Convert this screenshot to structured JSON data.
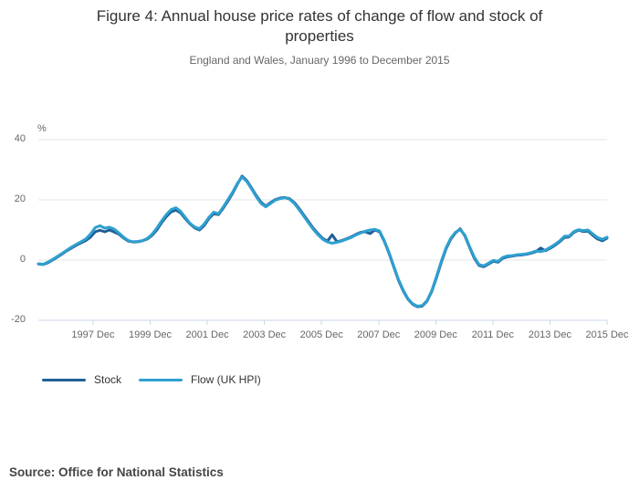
{
  "header": {
    "title": "Figure 4: Annual house price rates of change of flow and stock of properties",
    "subtitle": "England and Wales, January 1996 to December 2015"
  },
  "source": {
    "text": "Source: Office for National Statistics"
  },
  "colors": {
    "gridline": "#e6e6e6",
    "axis": "#ccd6eb",
    "tick_label": "#666666",
    "title_text": "#333333",
    "stock_line": "#206095",
    "flow_line": "#2fa0d0"
  },
  "chart_data": {
    "type": "line",
    "y_unit": "%",
    "ylim": [
      -20,
      40
    ],
    "y_ticks": [
      40,
      20,
      0,
      -20
    ],
    "grid": "horizontal-only",
    "legend_position": "bottom-left",
    "x_range": "January 1996 to December 2015",
    "x_total_months": 240,
    "x_ticks": [
      {
        "label": "1997 Dec",
        "month": 23
      },
      {
        "label": "1999 Dec",
        "month": 47
      },
      {
        "label": "2001 Dec",
        "month": 71
      },
      {
        "label": "2003 Dec",
        "month": 95
      },
      {
        "label": "2005 Dec",
        "month": 119
      },
      {
        "label": "2007 Dec",
        "month": 143
      },
      {
        "label": "2009 Dec",
        "month": 167
      },
      {
        "label": "2011 Dec",
        "month": 191
      },
      {
        "label": "2013 Dec",
        "month": 215
      },
      {
        "label": "2015 Dec",
        "month": 239
      }
    ],
    "sampling_note": "values sampled at two-month intervals, Jan 1996 to Dec 2015",
    "series": [
      {
        "name": "Stock",
        "color": "#206095",
        "values": [
          -1.3,
          -1.5,
          -0.9,
          0.0,
          1.0,
          2.0,
          3.1,
          4.0,
          4.9,
          5.7,
          6.5,
          7.6,
          9.4,
          9.9,
          9.4,
          10.0,
          9.3,
          8.6,
          7.3,
          6.3,
          6.0,
          6.1,
          6.4,
          7.0,
          8.2,
          10.0,
          12.4,
          14.4,
          16.0,
          16.6,
          15.7,
          13.8,
          12.0,
          10.7,
          10.0,
          11.5,
          13.8,
          15.4,
          15.1,
          17.2,
          19.6,
          22.2,
          25.2,
          27.9,
          26.4,
          23.9,
          21.4,
          19.2,
          17.9,
          19.1,
          20.1,
          20.6,
          20.8,
          20.4,
          19.1,
          17.2,
          15.0,
          12.8,
          10.6,
          8.8,
          7.2,
          6.3,
          8.4,
          6.1,
          6.5,
          7.1,
          7.7,
          8.5,
          9.2,
          9.4,
          8.8,
          10.0,
          9.4,
          6.2,
          2.2,
          -2.3,
          -6.8,
          -10.3,
          -13.0,
          -14.7,
          -15.5,
          -15.3,
          -13.7,
          -10.5,
          -5.9,
          -0.9,
          3.6,
          6.9,
          9.0,
          10.4,
          8.0,
          4.2,
          0.6,
          -1.8,
          -2.2,
          -1.3,
          -0.4,
          -0.7,
          0.6,
          1.1,
          1.3,
          1.6,
          1.7,
          1.9,
          2.3,
          2.8,
          4.0,
          3.1,
          3.9,
          4.9,
          6.1,
          7.5,
          7.7,
          9.2,
          9.9,
          9.5,
          9.6,
          8.2,
          7.0,
          6.4,
          7.3
        ]
      },
      {
        "name": "Flow (UK HPI)",
        "color": "#2fa0d0",
        "values": [
          -1.2,
          -1.4,
          -0.7,
          0.2,
          1.2,
          2.2,
          3.3,
          4.3,
          5.2,
          6.1,
          7.0,
          8.6,
          10.8,
          11.4,
          10.6,
          10.9,
          10.3,
          9.0,
          7.6,
          6.5,
          6.1,
          6.2,
          6.5,
          7.2,
          8.6,
          10.6,
          13.0,
          15.1,
          16.8,
          17.4,
          16.2,
          14.2,
          12.2,
          11.0,
          10.4,
          12.0,
          14.2,
          15.9,
          15.4,
          17.6,
          20.1,
          22.6,
          25.5,
          27.6,
          26.1,
          23.6,
          21.0,
          18.8,
          17.7,
          18.8,
          19.9,
          20.4,
          20.7,
          20.2,
          18.8,
          16.8,
          14.6,
          12.4,
          10.2,
          8.4,
          6.9,
          6.0,
          5.6,
          5.9,
          6.3,
          6.9,
          7.5,
          8.3,
          9.0,
          9.6,
          10.0,
          10.2,
          9.7,
          6.5,
          2.5,
          -2.0,
          -6.5,
          -10.0,
          -12.8,
          -14.5,
          -15.3,
          -15.1,
          -13.5,
          -10.2,
          -5.5,
          -0.5,
          4.0,
          7.2,
          9.2,
          10.1,
          8.3,
          4.5,
          1.0,
          -1.5,
          -1.9,
          -1.0,
          -0.1,
          -0.4,
          0.9,
          1.4,
          1.5,
          1.8,
          1.9,
          2.1,
          2.5,
          3.0,
          2.8,
          3.3,
          4.2,
          5.2,
          6.4,
          7.9,
          8.0,
          9.5,
          10.1,
          9.8,
          10.0,
          8.7,
          7.5,
          6.9,
          7.6
        ]
      }
    ]
  }
}
